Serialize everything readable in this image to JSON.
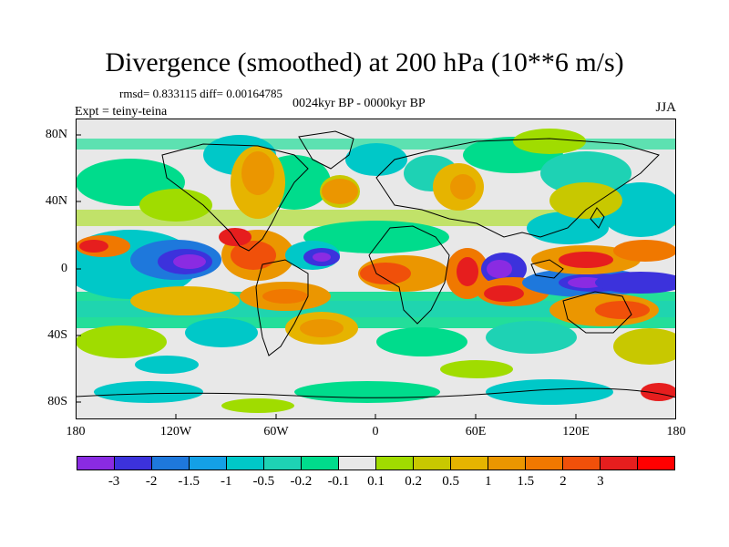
{
  "title": "Divergence (smoothed) at 200 hPa (10**6 m/s)",
  "stats": "rmsd= 0.833115 diff= 0.00164785",
  "subtitle": "0024kyr BP - 0000kyr BP",
  "experiment": "Expt = teiny-teina",
  "season": "JJA",
  "map": {
    "lat_labels": [
      "80N",
      "40N",
      "0",
      "40S",
      "80S"
    ],
    "lon_labels": [
      "180",
      "120W",
      "60W",
      "0",
      "60E",
      "120E",
      "180"
    ]
  },
  "colorbar": {
    "colors": [
      "#8a2be2",
      "#3c32dc",
      "#1e78dc",
      "#14a0e6",
      "#00c8c8",
      "#1ed2b4",
      "#00dc8c",
      "#e8e8e8",
      "#a0dc00",
      "#c8c800",
      "#e6b400",
      "#eb9600",
      "#f07800",
      "#f0500a",
      "#e61e1e",
      "#ff0000"
    ],
    "labels": [
      "-3",
      "-2",
      "-1.5",
      "-1",
      "-0.5",
      "-0.2",
      "-0.1",
      "0.1",
      "0.2",
      "0.5",
      "1",
      "1.5",
      "2",
      "3"
    ]
  }
}
